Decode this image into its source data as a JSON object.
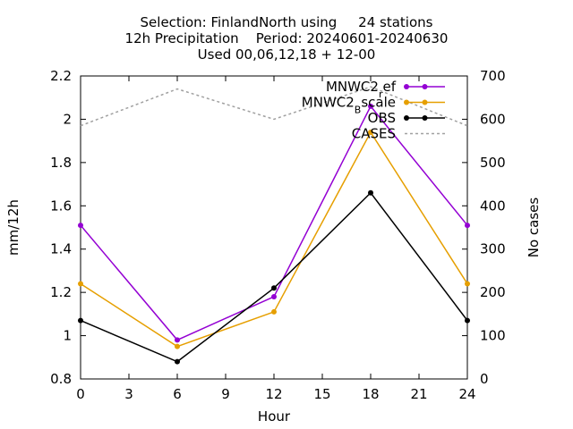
{
  "header": {
    "title_lines": [
      "Selection: FinlandNorth using     24 stations",
      "12h Precipitation    Period: 20240601-20240630",
      "Used 00,06,12,18 + 12-00"
    ]
  },
  "chart_data": {
    "type": "line",
    "xlabel": "Hour",
    "ylabel": "mm/12h",
    "y2label": "No cases",
    "xlim": [
      0,
      24
    ],
    "ylim": [
      0.8,
      2.2
    ],
    "y2lim": [
      0,
      700
    ],
    "xticks": [
      0,
      3,
      6,
      9,
      12,
      15,
      18,
      21,
      24
    ],
    "yticks": [
      0.8,
      1,
      1.2,
      1.4,
      1.6,
      1.8,
      2,
      2.2
    ],
    "y2ticks": [
      0,
      100,
      200,
      300,
      400,
      500,
      600,
      700
    ],
    "ytick_labels": [
      "0.8",
      "1",
      "1.2",
      "1.4",
      "1.6",
      "1.8",
      "2",
      "2.2"
    ],
    "grid": false,
    "legend_position": "top-right",
    "x": [
      0,
      6,
      12,
      18,
      24
    ],
    "series": [
      {
        "name": "MNWC2",
        "name_sub": "r",
        "name_tail": "ef",
        "axis": "y",
        "color": "#9400d3",
        "marker": "circle",
        "dash": "",
        "values": [
          1.51,
          0.98,
          1.18,
          2.06,
          1.51
        ]
      },
      {
        "name": "MNWC2",
        "name_sub": "B",
        "name_tail": "scale",
        "axis": "y",
        "color": "#e69f00",
        "marker": "circle",
        "dash": "",
        "values": [
          1.24,
          0.95,
          1.11,
          1.94,
          1.24
        ]
      },
      {
        "name": "OBS",
        "axis": "y",
        "color": "#000000",
        "marker": "circle",
        "dash": "",
        "values": [
          1.07,
          0.88,
          1.22,
          1.66,
          1.07
        ]
      },
      {
        "name": "CASES",
        "axis": "y2",
        "color": "#a0a0a0",
        "marker": "none",
        "dash": "3,3",
        "values": [
          585,
          670,
          600,
          675,
          585
        ]
      }
    ]
  }
}
